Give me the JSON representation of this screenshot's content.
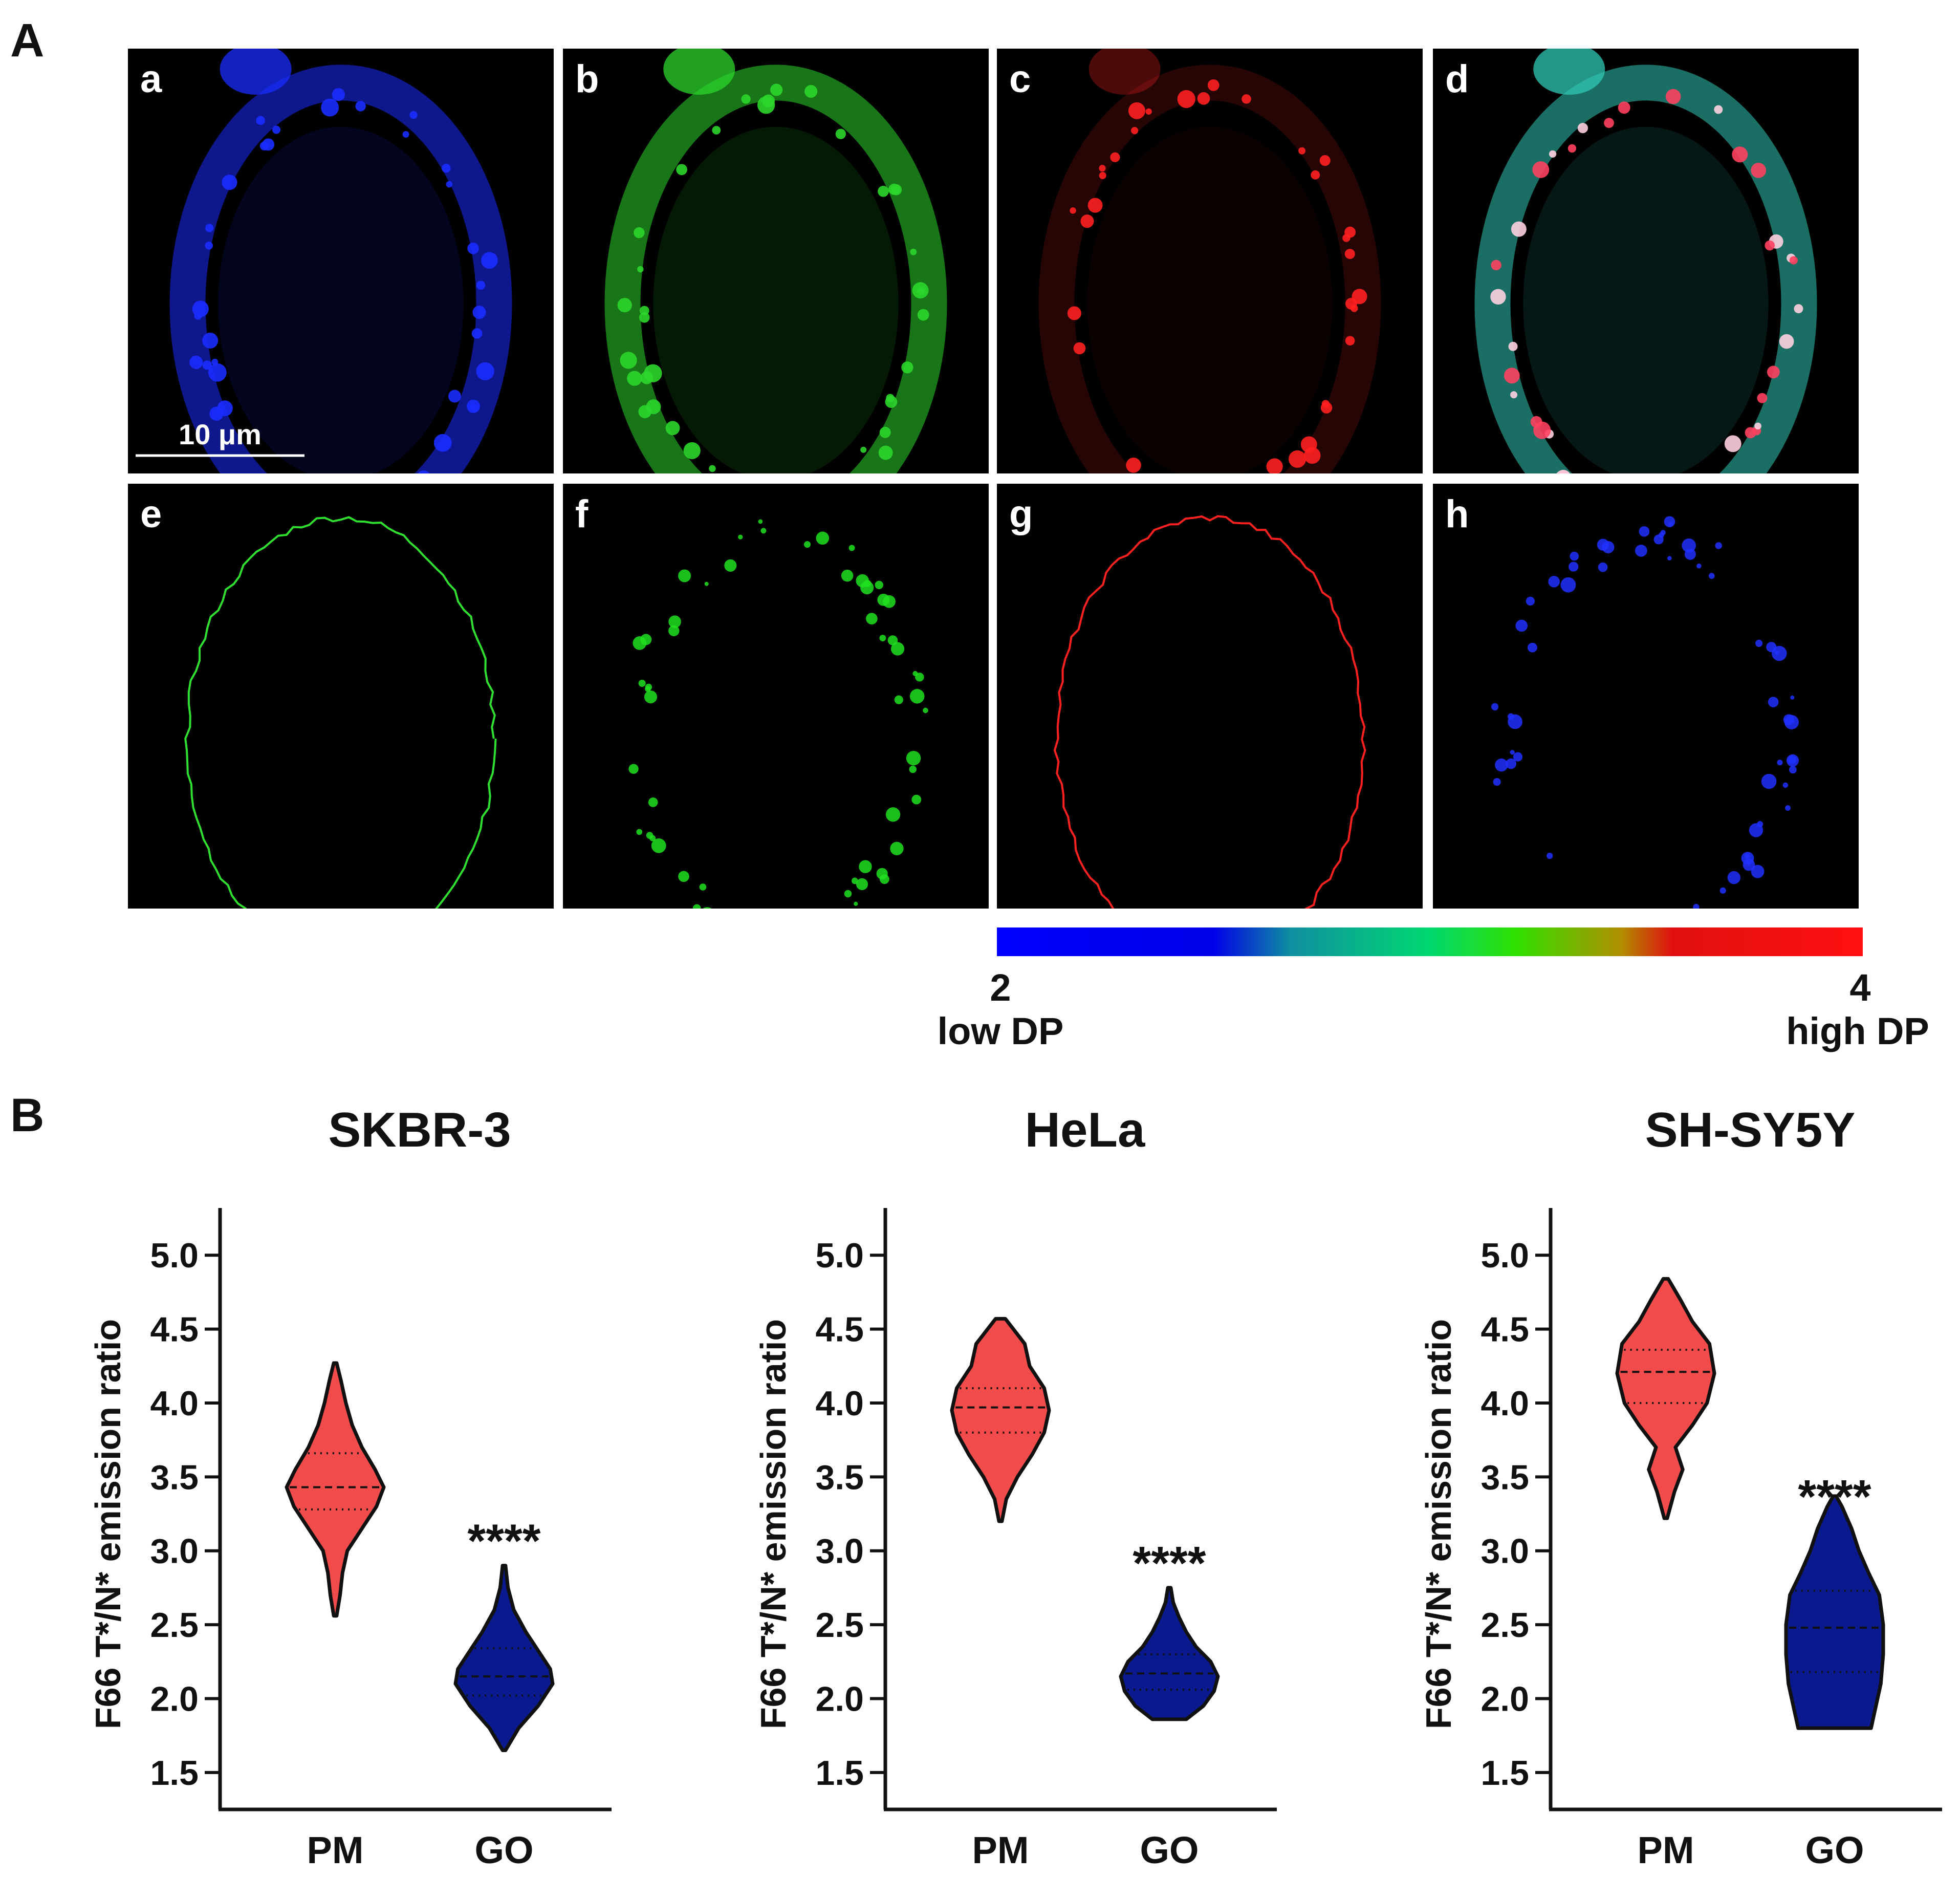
{
  "panel_labels": {
    "A": "A",
    "B": "B"
  },
  "micrographs": [
    {
      "letter": "a",
      "channel": "blue",
      "color": "#1a2cff"
    },
    {
      "letter": "b",
      "channel": "green",
      "color": "#2cd62c"
    },
    {
      "letter": "c",
      "channel": "red",
      "color": "#ff2020"
    },
    {
      "letter": "d",
      "channel": "merge",
      "color": "#30c8b4"
    },
    {
      "letter": "e",
      "channel": "pm-outline",
      "color": "#30e030"
    },
    {
      "letter": "f",
      "channel": "go-mask",
      "color": "#20e020"
    },
    {
      "letter": "g",
      "channel": "pm-ratio",
      "color": "#ff2020"
    },
    {
      "letter": "h",
      "channel": "go-ratio",
      "color": "#2030ff"
    }
  ],
  "scale_bar_label": "10 μm",
  "colorbar": {
    "min_label": "2",
    "max_label": "4",
    "low_label": "low DP",
    "high_label": "high DP",
    "colors": [
      "#0000ff",
      "#0000e6",
      "#10a0a0",
      "#00e070",
      "#40e000",
      "#c08000",
      "#ff0000"
    ]
  },
  "chart_data": [
    {
      "type": "violin",
      "title": "SKBR-3",
      "ylabel": "F66 T*/N* emission ratio",
      "xlabel": "",
      "ylim": [
        1.25,
        5.25
      ],
      "yticks": [
        "1.5",
        "2.0",
        "2.5",
        "3.0",
        "3.5",
        "4.0",
        "4.5",
        "5.0"
      ],
      "categories": [
        "PM",
        "GO"
      ],
      "significance": "****",
      "significance_y": 3.2,
      "series": [
        {
          "name": "PM",
          "color": "#f14b4b",
          "min": 2.56,
          "max": 4.27,
          "q1": 3.28,
          "median": 3.43,
          "q3": 3.66,
          "profile": [
            [
              2.56,
              0.03
            ],
            [
              2.7,
              0.1
            ],
            [
              2.85,
              0.15
            ],
            [
              3.0,
              0.25
            ],
            [
              3.15,
              0.55
            ],
            [
              3.3,
              0.85
            ],
            [
              3.43,
              1.0
            ],
            [
              3.55,
              0.82
            ],
            [
              3.7,
              0.55
            ],
            [
              3.85,
              0.35
            ],
            [
              4.0,
              0.22
            ],
            [
              4.15,
              0.12
            ],
            [
              4.27,
              0.03
            ]
          ]
        },
        {
          "name": "GO",
          "color": "#0a1a8e",
          "min": 1.65,
          "max": 2.9,
          "q1": 2.02,
          "median": 2.15,
          "q3": 2.34,
          "profile": [
            [
              1.65,
              0.03
            ],
            [
              1.8,
              0.3
            ],
            [
              1.95,
              0.7
            ],
            [
              2.1,
              1.0
            ],
            [
              2.2,
              0.95
            ],
            [
              2.3,
              0.75
            ],
            [
              2.45,
              0.45
            ],
            [
              2.6,
              0.2
            ],
            [
              2.75,
              0.08
            ],
            [
              2.9,
              0.03
            ]
          ]
        }
      ]
    },
    {
      "type": "violin",
      "title": "HeLa",
      "ylabel": "F66 T*/N* emission ratio",
      "xlabel": "",
      "ylim": [
        1.25,
        5.25
      ],
      "yticks": [
        "1.5",
        "2.0",
        "2.5",
        "3.0",
        "3.5",
        "4.0",
        "4.5",
        "5.0"
      ],
      "categories": [
        "PM",
        "GO"
      ],
      "significance": "****",
      "significance_y": 3.05,
      "series": [
        {
          "name": "PM",
          "color": "#f14b4b",
          "min": 3.2,
          "max": 4.57,
          "q1": 3.8,
          "median": 3.97,
          "q3": 4.1,
          "profile": [
            [
              3.2,
              0.03
            ],
            [
              3.35,
              0.12
            ],
            [
              3.5,
              0.35
            ],
            [
              3.65,
              0.65
            ],
            [
              3.8,
              0.9
            ],
            [
              3.95,
              1.0
            ],
            [
              4.1,
              0.9
            ],
            [
              4.25,
              0.6
            ],
            [
              4.4,
              0.5
            ],
            [
              4.57,
              0.1
            ]
          ]
        },
        {
          "name": "GO",
          "color": "#0a1a8e",
          "min": 1.86,
          "max": 2.75,
          "q1": 2.06,
          "median": 2.17,
          "q3": 2.3,
          "profile": [
            [
              1.86,
              0.35
            ],
            [
              1.95,
              0.7
            ],
            [
              2.05,
              0.92
            ],
            [
              2.15,
              1.0
            ],
            [
              2.25,
              0.85
            ],
            [
              2.35,
              0.55
            ],
            [
              2.45,
              0.35
            ],
            [
              2.55,
              0.2
            ],
            [
              2.65,
              0.08
            ],
            [
              2.75,
              0.03
            ]
          ]
        }
      ]
    },
    {
      "type": "violin",
      "title": "SH-SY5Y",
      "ylabel": "F66 T*/N* emission ratio",
      "xlabel": "",
      "ylim": [
        1.25,
        5.25
      ],
      "yticks": [
        "1.5",
        "2.0",
        "2.5",
        "3.0",
        "3.5",
        "4.0",
        "4.5",
        "5.0"
      ],
      "categories": [
        "PM",
        "GO"
      ],
      "significance": "****",
      "significance_y": 3.5,
      "series": [
        {
          "name": "PM",
          "color": "#f14b4b",
          "min": 3.22,
          "max": 4.84,
          "q1": 4.0,
          "median": 4.21,
          "q3": 4.36,
          "profile": [
            [
              3.22,
              0.03
            ],
            [
              3.4,
              0.18
            ],
            [
              3.55,
              0.35
            ],
            [
              3.7,
              0.2
            ],
            [
              3.85,
              0.55
            ],
            [
              4.0,
              0.85
            ],
            [
              4.2,
              1.0
            ],
            [
              4.4,
              0.9
            ],
            [
              4.55,
              0.55
            ],
            [
              4.7,
              0.3
            ],
            [
              4.84,
              0.05
            ]
          ]
        },
        {
          "name": "GO",
          "color": "#0a1a8e",
          "min": 1.8,
          "max": 3.37,
          "q1": 2.18,
          "median": 2.48,
          "q3": 2.73,
          "profile": [
            [
              1.8,
              0.75
            ],
            [
              1.95,
              0.85
            ],
            [
              2.1,
              0.95
            ],
            [
              2.3,
              1.0
            ],
            [
              2.5,
              1.0
            ],
            [
              2.7,
              0.92
            ],
            [
              2.85,
              0.7
            ],
            [
              3.0,
              0.5
            ],
            [
              3.15,
              0.35
            ],
            [
              3.3,
              0.15
            ],
            [
              3.37,
              0.03
            ]
          ]
        }
      ]
    }
  ]
}
